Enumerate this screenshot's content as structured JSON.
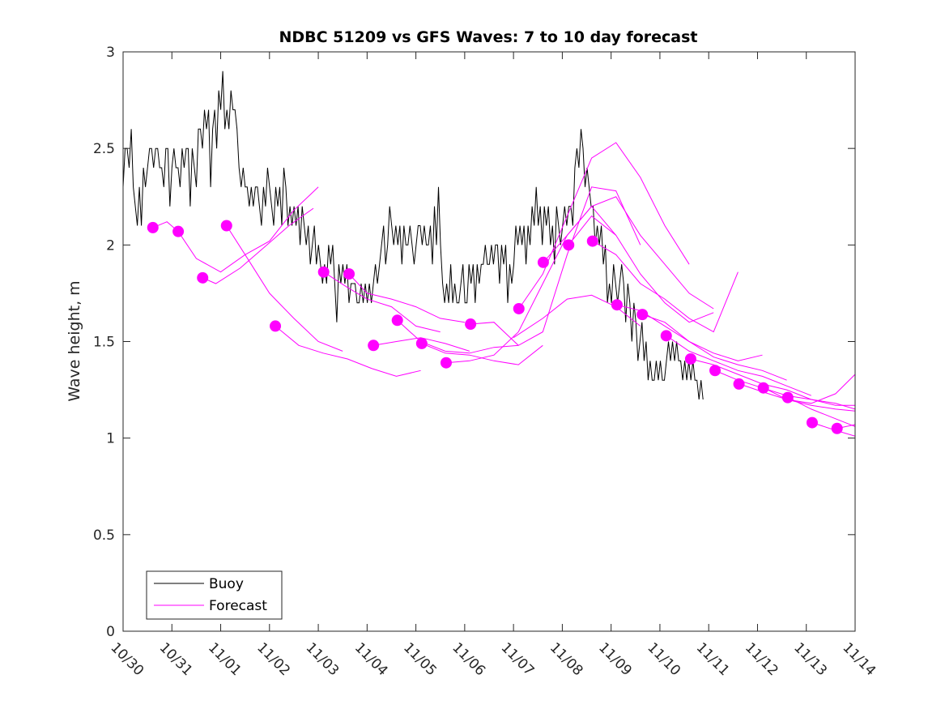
{
  "chart_data": {
    "type": "line",
    "title": "NDBC 51209 vs GFS Waves: 7 to 10 day forecast",
    "xlabel": "",
    "ylabel": "Wave height, m",
    "x_unit": "days since 10/30",
    "xlim": [
      0,
      15
    ],
    "ylim": [
      0,
      3
    ],
    "yticks": [
      0,
      0.5,
      1,
      1.5,
      2,
      2.5,
      3
    ],
    "ytick_labels": [
      "0",
      "0.5",
      "1",
      "1.5",
      "2",
      "2.5",
      "3"
    ],
    "xticks": [
      0,
      1,
      2,
      3,
      4,
      5,
      6,
      7,
      8,
      9,
      10,
      11,
      12,
      13,
      14,
      15
    ],
    "xtick_labels": [
      "10/30",
      "10/31",
      "11/01",
      "11/02",
      "11/03",
      "11/04",
      "11/05",
      "11/06",
      "11/07",
      "11/08",
      "11/09",
      "11/10",
      "11/11",
      "11/12",
      "11/13",
      "11/14"
    ],
    "grid": false,
    "legend": {
      "placement": "bottom-left",
      "entries": [
        {
          "label": "Buoy",
          "color": "#000000"
        },
        {
          "label": "Forecast",
          "color": "#ff00ff"
        }
      ]
    },
    "colors": {
      "buoy": "#000000",
      "forecast": "#ff00ff",
      "axis": "#262626"
    },
    "series": [
      {
        "name": "Buoy",
        "x_start": 0,
        "x_step": 0.0417,
        "values": [
          2.3,
          2.5,
          2.5,
          2.4,
          2.6,
          2.3,
          2.2,
          2.1,
          2.3,
          2.1,
          2.4,
          2.3,
          2.4,
          2.5,
          2.5,
          2.4,
          2.5,
          2.5,
          2.4,
          2.4,
          2.3,
          2.5,
          2.5,
          2.2,
          2.4,
          2.5,
          2.4,
          2.4,
          2.3,
          2.5,
          2.4,
          2.5,
          2.5,
          2.2,
          2.5,
          2.4,
          2.3,
          2.6,
          2.6,
          2.5,
          2.7,
          2.6,
          2.7,
          2.3,
          2.6,
          2.7,
          2.5,
          2.8,
          2.7,
          2.9,
          2.6,
          2.7,
          2.6,
          2.8,
          2.7,
          2.7,
          2.6,
          2.4,
          2.3,
          2.4,
          2.3,
          2.3,
          2.2,
          2.3,
          2.2,
          2.3,
          2.3,
          2.2,
          2.1,
          2.3,
          2.2,
          2.4,
          2.3,
          2.2,
          2.1,
          2.3,
          2.2,
          2.3,
          2.1,
          2.4,
          2.3,
          2.1,
          2.2,
          2.1,
          2.2,
          2.1,
          2.2,
          2.0,
          2.2,
          2.1,
          2.0,
          2.1,
          1.9,
          2.0,
          2.1,
          1.9,
          2.0,
          1.9,
          1.8,
          1.9,
          1.8,
          2.0,
          1.9,
          2.0,
          1.8,
          1.6,
          1.9,
          1.8,
          1.9,
          1.8,
          1.9,
          1.7,
          1.8,
          1.8,
          1.8,
          1.7,
          1.7,
          1.8,
          1.7,
          1.8,
          1.7,
          1.8,
          1.7,
          1.8,
          1.9,
          1.8,
          1.9,
          2.0,
          2.1,
          1.9,
          2.0,
          2.2,
          2.1,
          2.0,
          2.1,
          2.0,
          2.1,
          1.9,
          2.1,
          2.0,
          2.0,
          2.1,
          2.0,
          1.9,
          2.0,
          2.1,
          2.1,
          2.0,
          2.1,
          2.0,
          2.0,
          2.1,
          1.9,
          2.2,
          2.0,
          2.3,
          2.0,
          1.8,
          1.7,
          1.8,
          1.7,
          1.9,
          1.7,
          1.8,
          1.7,
          1.7,
          1.8,
          1.9,
          1.7,
          1.7,
          1.9,
          1.8,
          1.9,
          1.7,
          1.9,
          1.8,
          1.9,
          1.9,
          2.0,
          1.9,
          1.9,
          2.0,
          1.9,
          2.0,
          2.0,
          1.8,
          2.0,
          1.9,
          2.0,
          1.7,
          1.9,
          1.8,
          1.9,
          2.1,
          2.0,
          2.1,
          2.0,
          2.1,
          1.9,
          2.1,
          2.0,
          2.2,
          2.1,
          2.3,
          2.1,
          2.2,
          2.0,
          2.2,
          2.1,
          2.2,
          2.0,
          2.1,
          1.9,
          2.2,
          2.1,
          2.0,
          2.1,
          2.2,
          2.1,
          2.2,
          2.2,
          2.1,
          2.4,
          2.5,
          2.4,
          2.6,
          2.5,
          2.3,
          2.4,
          2.3,
          2.2,
          2.2,
          2.0,
          2.1,
          2.0,
          2.1,
          1.9,
          2.0,
          1.7,
          1.8,
          1.7,
          1.9,
          1.8,
          1.7,
          1.8,
          1.9,
          1.8,
          1.6,
          1.8,
          1.7,
          1.5,
          1.7,
          1.6,
          1.4,
          1.5,
          1.6,
          1.4,
          1.5,
          1.3,
          1.4,
          1.3,
          1.3,
          1.4,
          1.3,
          1.4,
          1.3,
          1.3,
          1.4,
          1.5,
          1.4,
          1.5,
          1.4,
          1.5,
          1.4,
          1.4,
          1.3,
          1.4,
          1.3,
          1.4,
          1.3,
          1.4,
          1.3,
          1.3,
          1.2,
          1.3,
          1.2
        ]
      }
    ],
    "forecast_runs": [
      {
        "x": [
          0.61,
          0.9,
          1.13
        ],
        "y": [
          2.09,
          2.12,
          2.07
        ]
      },
      {
        "x": [
          1.13,
          1.5,
          2.0,
          2.5,
          3.0,
          3.5,
          4.0
        ],
        "y": [
          2.07,
          1.93,
          1.86,
          1.95,
          2.02,
          2.18,
          2.3
        ]
      },
      {
        "x": [
          1.63,
          1.9,
          2.4,
          2.9,
          3.4,
          3.9
        ],
        "y": [
          1.83,
          1.8,
          1.88,
          1.99,
          2.1,
          2.19
        ]
      },
      {
        "x": [
          2.12,
          2.5,
          3.0,
          3.5,
          4.0,
          4.5
        ],
        "y": [
          2.1,
          1.95,
          1.75,
          1.62,
          1.5,
          1.45
        ]
      },
      {
        "x": [
          3.12,
          3.6,
          4.1,
          4.6,
          5.1,
          5.6,
          6.1
        ],
        "y": [
          1.58,
          1.48,
          1.44,
          1.41,
          1.36,
          1.32,
          1.35
        ]
      },
      {
        "x": [
          4.11,
          4.6,
          5.0,
          5.5,
          6.0,
          6.5
        ],
        "y": [
          1.86,
          1.78,
          1.72,
          1.68,
          1.58,
          1.55
        ]
      },
      {
        "x": [
          4.63,
          5.0,
          5.5,
          6.0,
          6.5,
          7.0
        ],
        "y": [
          1.85,
          1.75,
          1.72,
          1.68,
          1.62,
          1.6
        ]
      },
      {
        "x": [
          5.13,
          5.6,
          6.1,
          6.6,
          7.1
        ],
        "y": [
          1.48,
          1.5,
          1.52,
          1.49,
          1.45
        ]
      },
      {
        "x": [
          5.62,
          6.1,
          6.6,
          7.1,
          7.6,
          8.1
        ],
        "y": [
          1.61,
          1.5,
          1.45,
          1.44,
          1.47,
          1.48
        ]
      },
      {
        "x": [
          6.12,
          6.6,
          7.1,
          7.6,
          8.1,
          8.6
        ],
        "y": [
          1.49,
          1.44,
          1.43,
          1.4,
          1.38,
          1.48
        ]
      },
      {
        "x": [
          6.62,
          7.1,
          7.6,
          8.1,
          8.6,
          9.1,
          9.6,
          10.1
        ],
        "y": [
          1.39,
          1.4,
          1.43,
          1.55,
          1.8,
          2.05,
          2.2,
          2.05
        ]
      },
      {
        "x": [
          7.12,
          7.6,
          8.1,
          8.6,
          9.1,
          9.6,
          10.1,
          10.6
        ],
        "y": [
          1.59,
          1.6,
          1.48,
          1.55,
          1.95,
          2.3,
          2.28,
          2.0
        ]
      },
      {
        "x": [
          8.11,
          8.6,
          9.1,
          9.6,
          10.1,
          10.6,
          11.1,
          11.6
        ],
        "y": [
          1.67,
          1.85,
          2.15,
          2.45,
          2.53,
          2.35,
          2.1,
          1.9
        ]
      },
      {
        "x": [
          8.61,
          9.1,
          9.6,
          10.1,
          10.6,
          11.1,
          11.6,
          12.1
        ],
        "y": [
          1.91,
          2.05,
          2.2,
          2.25,
          2.05,
          1.9,
          1.75,
          1.67
        ]
      },
      {
        "x": [
          9.13,
          9.6,
          10.1,
          10.6,
          11.1,
          11.6,
          12.1
        ],
        "y": [
          2.0,
          2.15,
          2.05,
          1.85,
          1.7,
          1.6,
          1.65
        ]
      },
      {
        "x": [
          9.62,
          10.1,
          10.6,
          11.1,
          11.6,
          12.1,
          12.6
        ],
        "y": [
          2.02,
          1.95,
          1.8,
          1.72,
          1.62,
          1.55,
          1.86
        ]
      },
      {
        "x": [
          8.0,
          8.6,
          9.1,
          9.6,
          10.1,
          10.6
        ],
        "y": [
          1.52,
          1.62,
          1.72,
          1.74,
          1.68,
          1.58
        ]
      },
      {
        "x": [
          10.12,
          10.6,
          11.1,
          11.6,
          12.1,
          12.6,
          13.1
        ],
        "y": [
          1.69,
          1.66,
          1.58,
          1.5,
          1.44,
          1.4,
          1.43
        ]
      },
      {
        "x": [
          10.64,
          11.1,
          11.6,
          12.1,
          12.6,
          13.1,
          13.6
        ],
        "y": [
          1.64,
          1.6,
          1.5,
          1.42,
          1.38,
          1.35,
          1.3
        ]
      },
      {
        "x": [
          11.13,
          11.6,
          12.1,
          12.6,
          13.1,
          13.6,
          14.1
        ],
        "y": [
          1.53,
          1.45,
          1.4,
          1.35,
          1.32,
          1.27,
          1.22
        ]
      },
      {
        "x": [
          11.63,
          12.1,
          12.6,
          13.1,
          13.6,
          14.1,
          14.6,
          15.0
        ],
        "y": [
          1.41,
          1.38,
          1.33,
          1.28,
          1.25,
          1.2,
          1.18,
          1.15
        ]
      },
      {
        "x": [
          12.13,
          12.6,
          13.1,
          13.6,
          14.1,
          14.6,
          15.0
        ],
        "y": [
          1.35,
          1.3,
          1.26,
          1.22,
          1.2,
          1.17,
          1.17
        ]
      },
      {
        "x": [
          12.63,
          13.1,
          13.6,
          14.1,
          14.6,
          15.0
        ],
        "y": [
          1.28,
          1.24,
          1.2,
          1.18,
          1.23,
          1.33
        ]
      },
      {
        "x": [
          13.13,
          13.6,
          14.1,
          14.6,
          15.0
        ],
        "y": [
          1.26,
          1.2,
          1.17,
          1.15,
          1.14
        ]
      },
      {
        "x": [
          13.63,
          14.1,
          14.6,
          15.0
        ],
        "y": [
          1.21,
          1.15,
          1.1,
          1.06
        ]
      },
      {
        "x": [
          14.12,
          14.6,
          15.0
        ],
        "y": [
          1.08,
          1.04,
          1.01
        ]
      },
      {
        "x": [
          14.63,
          15.0
        ],
        "y": [
          1.05,
          1.07
        ]
      }
    ],
    "forecast_points": {
      "x": [
        0.61,
        1.13,
        1.63,
        2.12,
        3.12,
        4.11,
        4.63,
        5.13,
        5.62,
        6.12,
        6.62,
        7.12,
        8.11,
        8.61,
        9.13,
        9.62,
        10.12,
        10.64,
        11.13,
        11.63,
        12.13,
        12.62,
        13.12,
        13.62,
        14.12,
        14.63
      ],
      "y": [
        2.09,
        2.07,
        1.83,
        2.1,
        1.58,
        1.86,
        1.85,
        1.48,
        1.61,
        1.49,
        1.39,
        1.59,
        1.67,
        1.91,
        2.0,
        2.02,
        1.69,
        1.64,
        1.53,
        1.41,
        1.35,
        1.28,
        1.26,
        1.21,
        1.08,
        1.05
      ]
    }
  }
}
